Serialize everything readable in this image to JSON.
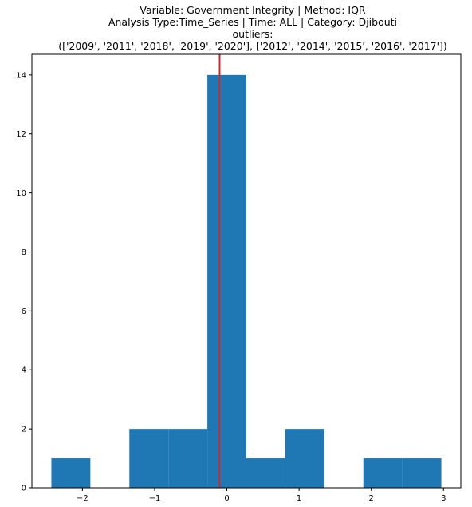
{
  "chart_data": {
    "type": "bar",
    "title_lines": [
      "Variable: Government Integrity | Method: IQR",
      "Analysis Type:Time_Series | Time: ALL | Category: Djibouti",
      "outliers:",
      "(['2009', '2011', '2018', '2019', '2020'], ['2012', '2014', '2015', '2016', '2017'])"
    ],
    "bins": [
      {
        "x0": -2.43,
        "x1": -1.89,
        "count": 1
      },
      {
        "x0": -1.89,
        "x1": -1.35,
        "count": 0
      },
      {
        "x0": -1.35,
        "x1": -0.81,
        "count": 2
      },
      {
        "x0": -0.81,
        "x1": -0.27,
        "count": 2
      },
      {
        "x0": -0.27,
        "x1": 0.27,
        "count": 14
      },
      {
        "x0": 0.27,
        "x1": 0.81,
        "count": 1
      },
      {
        "x0": 0.81,
        "x1": 1.35,
        "count": 2
      },
      {
        "x0": 1.35,
        "x1": 1.89,
        "count": 0
      },
      {
        "x0": 1.89,
        "x1": 2.43,
        "count": 1
      },
      {
        "x0": 2.43,
        "x1": 2.97,
        "count": 1
      }
    ],
    "vline": {
      "x": -0.1,
      "color": "#d62728"
    },
    "bar_color": "#1f77b4",
    "xlim": [
      -2.7,
      3.24
    ],
    "ylim": [
      0,
      14.7
    ],
    "xticks": [
      -2,
      -1,
      0,
      1,
      2,
      3
    ],
    "xtick_labels": [
      "−2",
      "−1",
      "0",
      "1",
      "2",
      "3"
    ],
    "yticks": [
      0,
      2,
      4,
      6,
      8,
      10,
      12,
      14
    ],
    "ytick_labels": [
      "0",
      "2",
      "4",
      "6",
      "8",
      "10",
      "12",
      "14"
    ],
    "grid": false,
    "legend": "none"
  }
}
